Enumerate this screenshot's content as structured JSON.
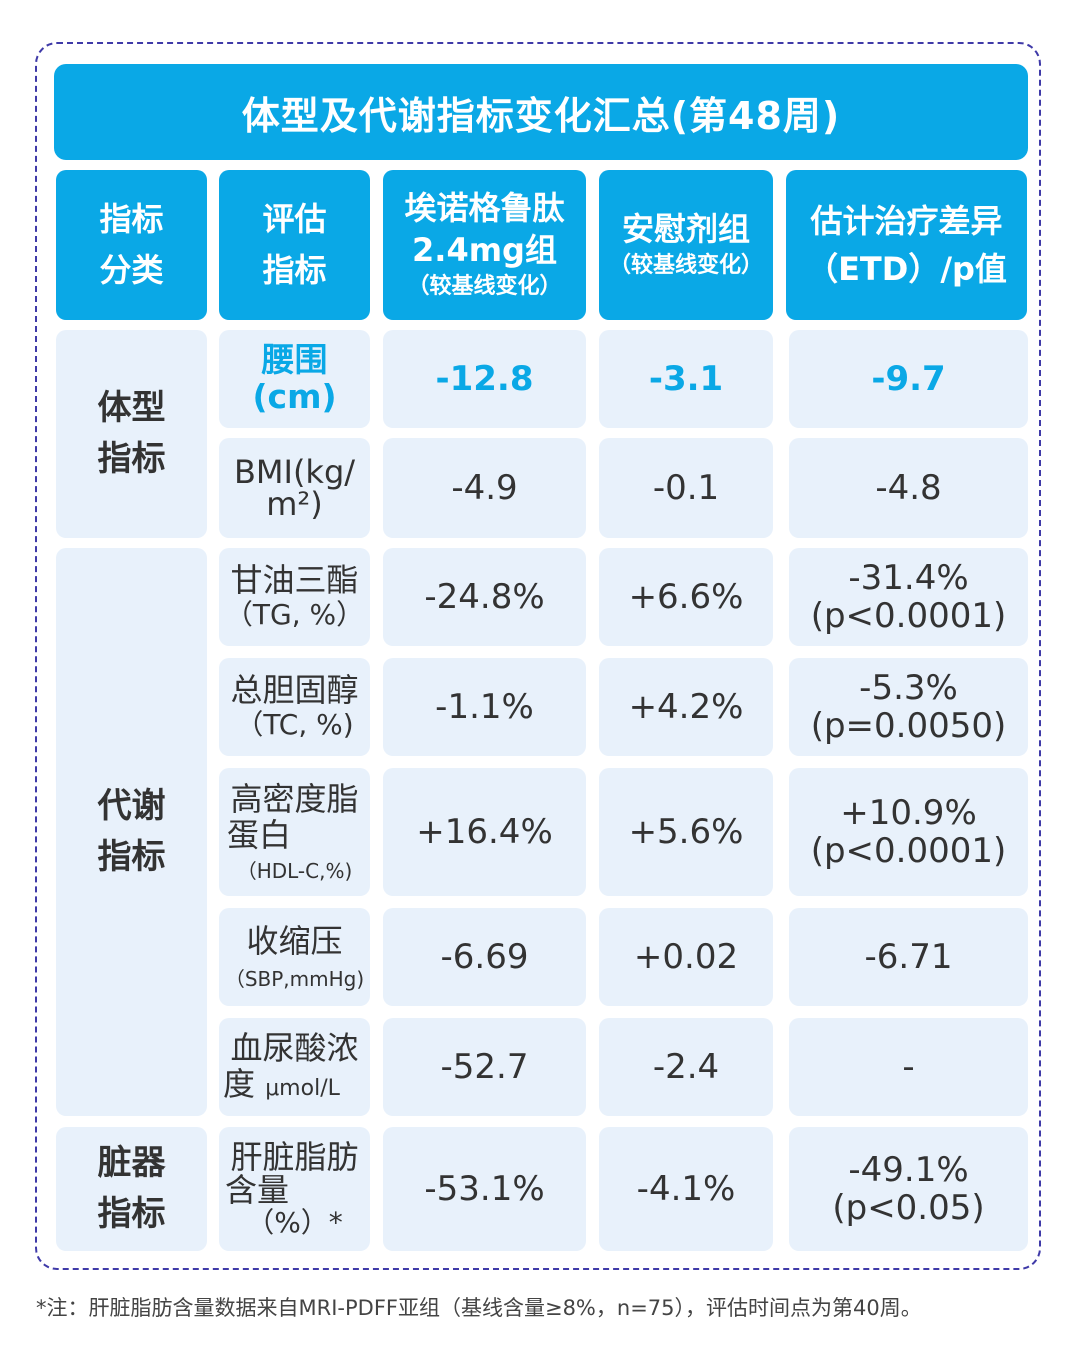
{
  "title": "体型及代谢指标变化汇总(第48周)",
  "headers": {
    "category": [
      "指标",
      "分类"
    ],
    "indicator": [
      "评估",
      "指标"
    ],
    "semaglutide": [
      "埃诺格鲁肽",
      "2.4mg组"
    ],
    "semaglutide_sub": "（较基线变化）",
    "placebo": "安慰剂组",
    "placebo_sub": "（较基线变化）",
    "etd": [
      "估计治疗差异",
      "（ETD）/p值"
    ]
  },
  "categories": {
    "body": [
      "体型",
      "指标"
    ],
    "metabolic": [
      "代谢",
      "指标"
    ],
    "organ": [
      "脏器",
      "指标"
    ]
  },
  "rows": [
    {
      "indicator": [
        "腰围",
        "(cm)"
      ],
      "drug": "-12.8",
      "placebo": "-3.1",
      "etd": [
        "-9.7"
      ]
    },
    {
      "indicator": [
        "BMI(kg/",
        "m²)"
      ],
      "drug": "-4.9",
      "placebo": "-0.1",
      "etd": [
        "-4.8"
      ]
    },
    {
      "indicator": [
        "甘油三酯",
        "（TG, %）"
      ],
      "drug": "-24.8%",
      "placebo": "+6.6%",
      "etd": [
        "-31.4%",
        "(p<0.0001)"
      ]
    },
    {
      "indicator": [
        "总胆固醇",
        "（TC, %)"
      ],
      "drug": "-1.1%",
      "placebo": "+4.2%",
      "etd": [
        "-5.3%",
        "(p=0.0050)"
      ]
    },
    {
      "indicator": [
        "高密度脂",
        "蛋白"
      ],
      "indicator_small": "（HDL-C,%)",
      "drug": "+16.4%",
      "placebo": "+5.6%",
      "etd": [
        "+10.9%",
        "(p<0.0001)"
      ]
    },
    {
      "indicator": [
        "收缩压"
      ],
      "indicator_small": "（SBP,mmHg)",
      "drug": "-6.69",
      "placebo": "+0.02",
      "etd": [
        "-6.71"
      ]
    },
    {
      "indicator": [
        "血尿酸浓",
        "度"
      ],
      "indicator_unit": "μmol/L",
      "drug": "-52.7",
      "placebo": "-2.4",
      "etd": [
        "-"
      ]
    },
    {
      "indicator": [
        "肝脏脂肪",
        "含量",
        "（%）*"
      ],
      "drug": "-53.1%",
      "placebo": "-4.1%",
      "etd": [
        "-49.1%",
        "(p<0.05)"
      ]
    }
  ],
  "footnote": "*注：肝脏脂肪含量数据来自MRI-PDFF亚组（基线含量≥8%，n=75），评估时间点为第40周。"
}
